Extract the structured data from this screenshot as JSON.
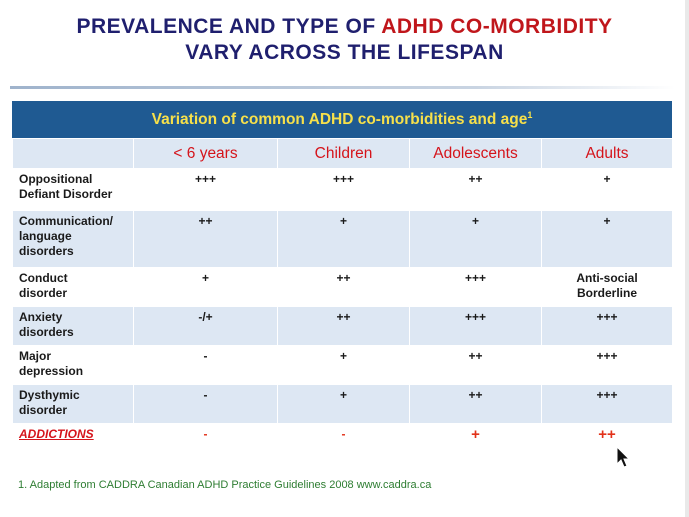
{
  "slide": {
    "title_line1_a": "PREVALENCE AND TYPE OF",
    "title_line1_b": "ADHD CO-MORBIDITY",
    "title_line2": "VARY ACROSS THE LIFESPAN",
    "banner": "Variation of common ADHD co-morbidities and age",
    "banner_sup": "1",
    "footnote": "1. Adapted from CADDRA Canadian ADHD Practice Guidelines 2008 www.caddra.ca"
  },
  "table": {
    "columns": [
      "< 6 years",
      "Children",
      "Adolescents",
      "Adults"
    ],
    "rows": [
      {
        "label": "Oppositional\nDefiant Disorder",
        "values": [
          "+++",
          "+++",
          "++",
          "+"
        ]
      },
      {
        "label": "Communication/\nlanguage\ndisorders",
        "values": [
          "++",
          "+",
          "+",
          "+"
        ]
      },
      {
        "label": "Conduct\ndisorder",
        "values": [
          "+",
          "++",
          "+++",
          "Anti-social\nBorderline"
        ]
      },
      {
        "label": "Anxiety\ndisorders",
        "values": [
          "-/+",
          "++",
          "+++",
          "+++"
        ]
      },
      {
        "label": "Major\ndepression",
        "values": [
          "-",
          "+",
          "++",
          "+++"
        ]
      },
      {
        "label": "Dysthymic\ndisorder",
        "values": [
          "-",
          "+",
          "++",
          "+++"
        ]
      },
      {
        "label": "ADDICTIONS",
        "values": [
          "-",
          "-",
          "+",
          "++"
        ]
      }
    ]
  },
  "colors": {
    "banner_bg": "#1f5a92",
    "banner_text": "#f7e04a",
    "accent_red": "#d5141b",
    "title_blue": "#1f1f6e",
    "row_alt": "#dde7f3"
  },
  "icons": {
    "cursor": "mouse-pointer-icon"
  }
}
